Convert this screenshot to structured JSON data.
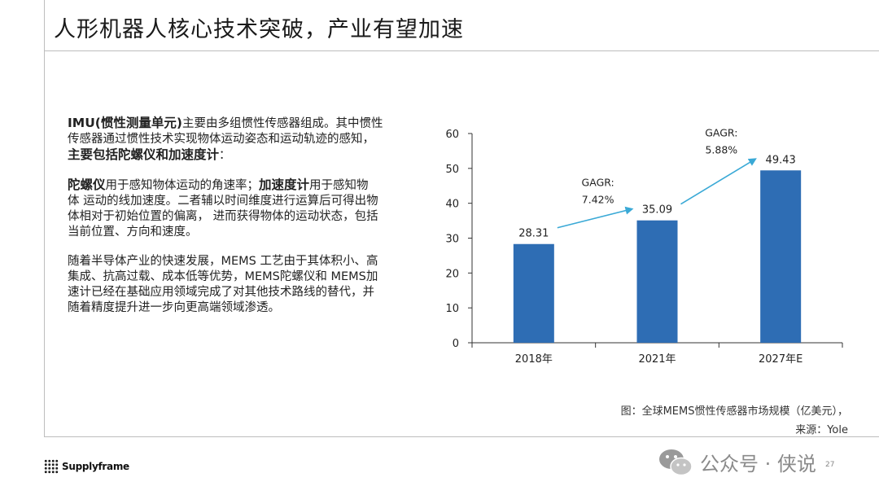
{
  "header": {
    "title": "人形机器人核心技术突破，产业有望加速"
  },
  "body": {
    "p1_lead": "IMU(惯性测量单元)",
    "p1_line1": "主要由多组惯性传感器组成。其中惯性",
    "p1_line2": "传感器通过惯性技术实现物体运动姿态和运动轨迹的感知，",
    "p1_strong": "主要包括陀螺仪和加速度计",
    "p1_tail": "：",
    "p2_strong1": "陀螺仪",
    "p2_text1": "用于感知物体运动的角速率；",
    "p2_strong2": "加速度计",
    "p2_text2a": "用于感知物",
    "p2_line2": "体 运动的线加速度。二者辅以时间维度进行运算后可得出物",
    "p2_line3": "体相对于初始位置的偏离， 进而获得物体的运动状态，包括",
    "p2_line4": "当前位置、方向和速度。",
    "p3_line1": "随着半导体产业的快速发展，MEMS 工艺由于其体积小、高",
    "p3_line2": "集成、抗高过载、成本低等优势，MEMS陀螺仪和 MEMS加",
    "p3_line3": "速计已经在基础应用领域完成了对其他技术路线的替代，并",
    "p3_line4": "随着精度提升进一步向更高端领域渗透。"
  },
  "chart_data": {
    "type": "bar",
    "categories": [
      "2018年",
      "2021年",
      "2027年E"
    ],
    "values": [
      28.31,
      35.09,
      49.43
    ],
    "value_labels": [
      "28.31",
      "35.09",
      "49.43"
    ],
    "ylim": [
      0,
      60
    ],
    "yticks": [
      0,
      10,
      20,
      30,
      40,
      50,
      60
    ],
    "bar_color": "#2e6db4",
    "arrow_color": "#3aa9d6",
    "grid": false,
    "annotations": [
      {
        "label": "GAGR:",
        "value": "7.42%"
      },
      {
        "label": "GAGR:",
        "value": "5.88%"
      }
    ]
  },
  "caption": {
    "line1": "图：全球MEMS惯性传感器市场规模（亿美元），",
    "line2": "来源：Yole"
  },
  "footer": {
    "logo_text": "Supplyframe",
    "watermark": "公众号 · 侠说",
    "page_number": "27"
  }
}
